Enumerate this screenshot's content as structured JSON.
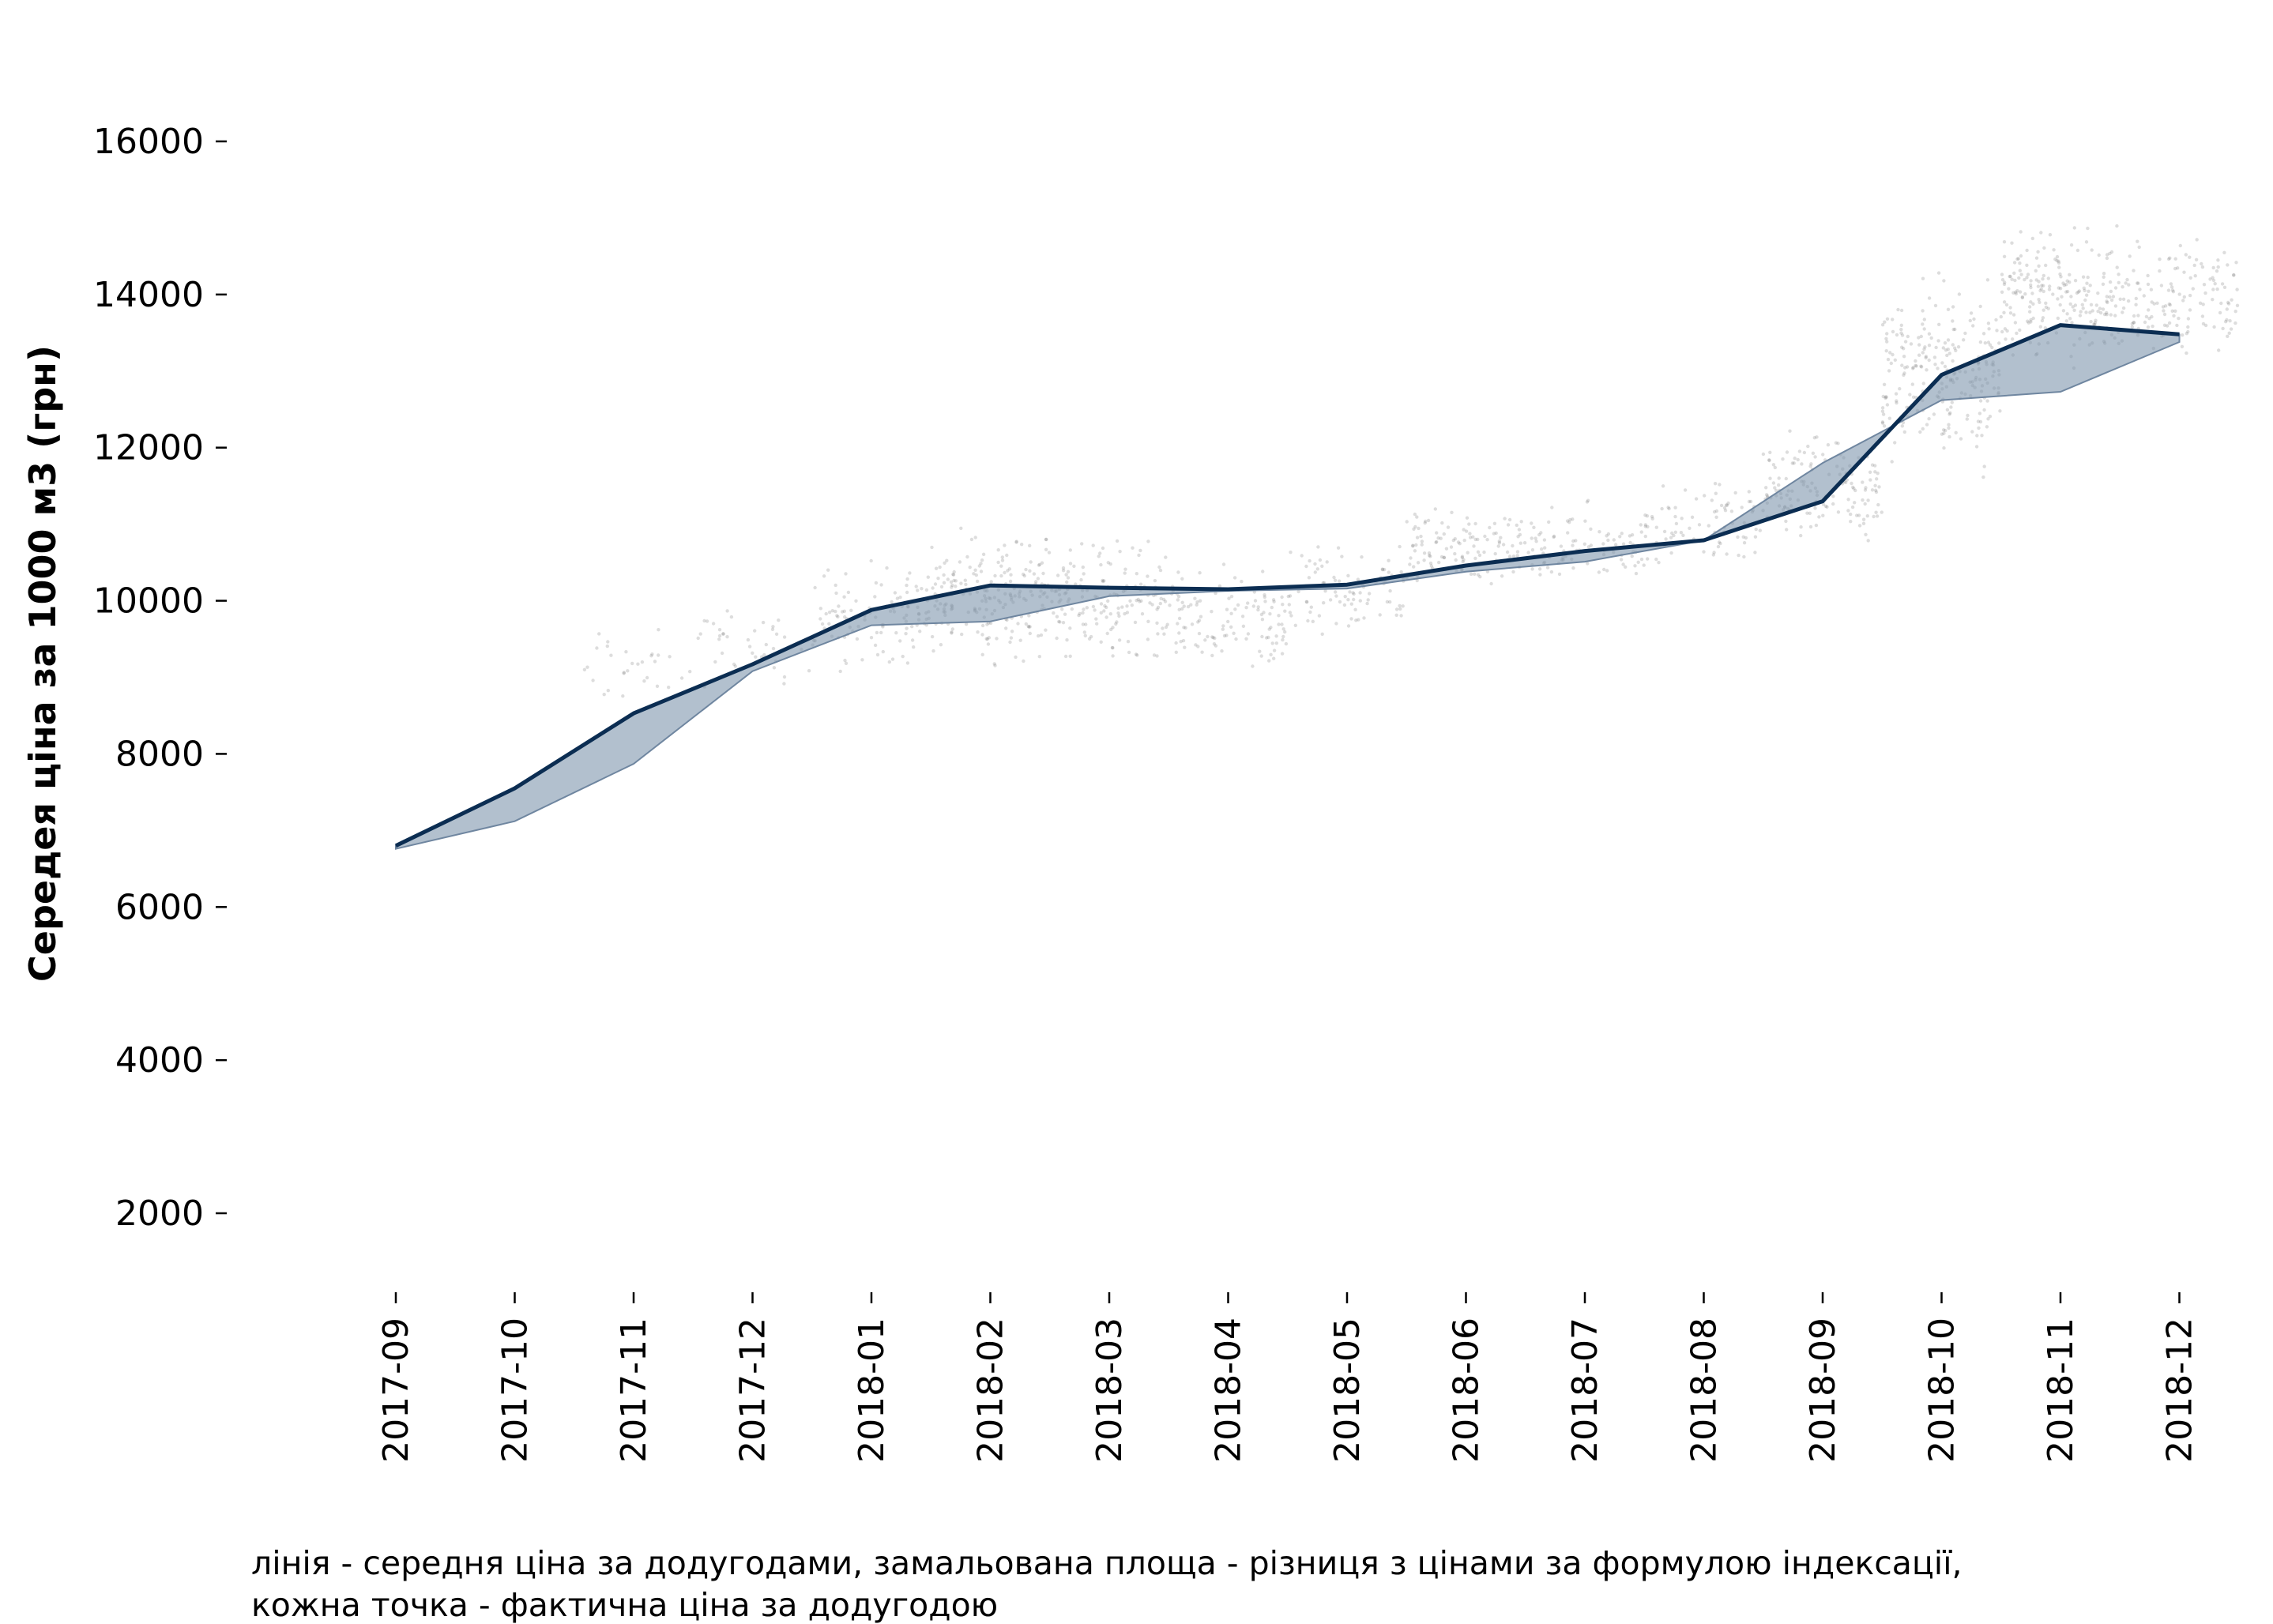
{
  "chart_data": {
    "type": "line",
    "ylabel": "Середея ціна за 1000 м3 (грн)",
    "xlabel": "",
    "ylim": [
      1000,
      17000
    ],
    "yticks": [
      2000,
      4000,
      6000,
      8000,
      10000,
      12000,
      14000,
      16000
    ],
    "categories": [
      "2017-09",
      "2017-10",
      "2017-11",
      "2017-12",
      "2018-01",
      "2018-02",
      "2018-03",
      "2018-04",
      "2018-05",
      "2018-06",
      "2018-07",
      "2018-08",
      "2018-09",
      "2018-10",
      "2018-11",
      "2018-12"
    ],
    "series": [
      {
        "role": "line",
        "values": [
          6800,
          7550,
          8530,
          9170,
          9880,
          10200,
          10170,
          10150,
          10210,
          10460,
          10650,
          10790,
          11300,
          12950,
          13600,
          13480
        ]
      },
      {
        "role": "indexation-formula-band",
        "values": [
          6760,
          7120,
          7870,
          9080,
          9680,
          9730,
          10060,
          10130,
          10160,
          10380,
          10510,
          10790,
          11800,
          12620,
          12730,
          13380
        ]
      }
    ],
    "scatter_clusters": [
      {
        "x": "2017-11",
        "y_center": 9100,
        "y_spread": 700,
        "count": 30
      },
      {
        "x": "2017-12",
        "y_center": 9400,
        "y_spread": 700,
        "count": 40
      },
      {
        "x": "2018-01",
        "y_center": 9800,
        "y_spread": 900,
        "count": 110
      },
      {
        "x": "2018-02",
        "y_center": 10100,
        "y_spread": 1100,
        "count": 200
      },
      {
        "x": "2018-03",
        "y_center": 10000,
        "y_spread": 1000,
        "count": 160
      },
      {
        "x": "2018-04",
        "y_center": 9700,
        "y_spread": 900,
        "count": 120
      },
      {
        "x": "2018-05",
        "y_center": 10100,
        "y_spread": 900,
        "count": 90
      },
      {
        "x": "2018-06",
        "y_center": 10700,
        "y_spread": 700,
        "count": 120
      },
      {
        "x": "2018-07",
        "y_center": 10700,
        "y_spread": 700,
        "count": 90
      },
      {
        "x": "2018-08",
        "y_center": 11000,
        "y_spread": 700,
        "count": 90
      },
      {
        "x": "2018-09",
        "y_center": 11500,
        "y_spread": 1000,
        "count": 150
      },
      {
        "x": "2018-10",
        "y_center": 13000,
        "y_spread": 1600,
        "count": 240
      },
      {
        "x": "2018-11",
        "y_center": 14000,
        "y_spread": 1100,
        "count": 220
      },
      {
        "x": "2018-12",
        "y_center": 14000,
        "y_spread": 1000,
        "count": 140
      }
    ],
    "grid": false,
    "legend": "none",
    "colors": {
      "line": "#0b2d52",
      "band_fill": "#7f96ad",
      "band_edge": "#6f86a0",
      "points": "#666666"
    }
  },
  "caption": {
    "line1": "лінія - середня ціна за додугодами, замальована площа - різниця з цінами за формулою індексації,",
    "line2": "кожна точка - фактична ціна за додугодою"
  }
}
